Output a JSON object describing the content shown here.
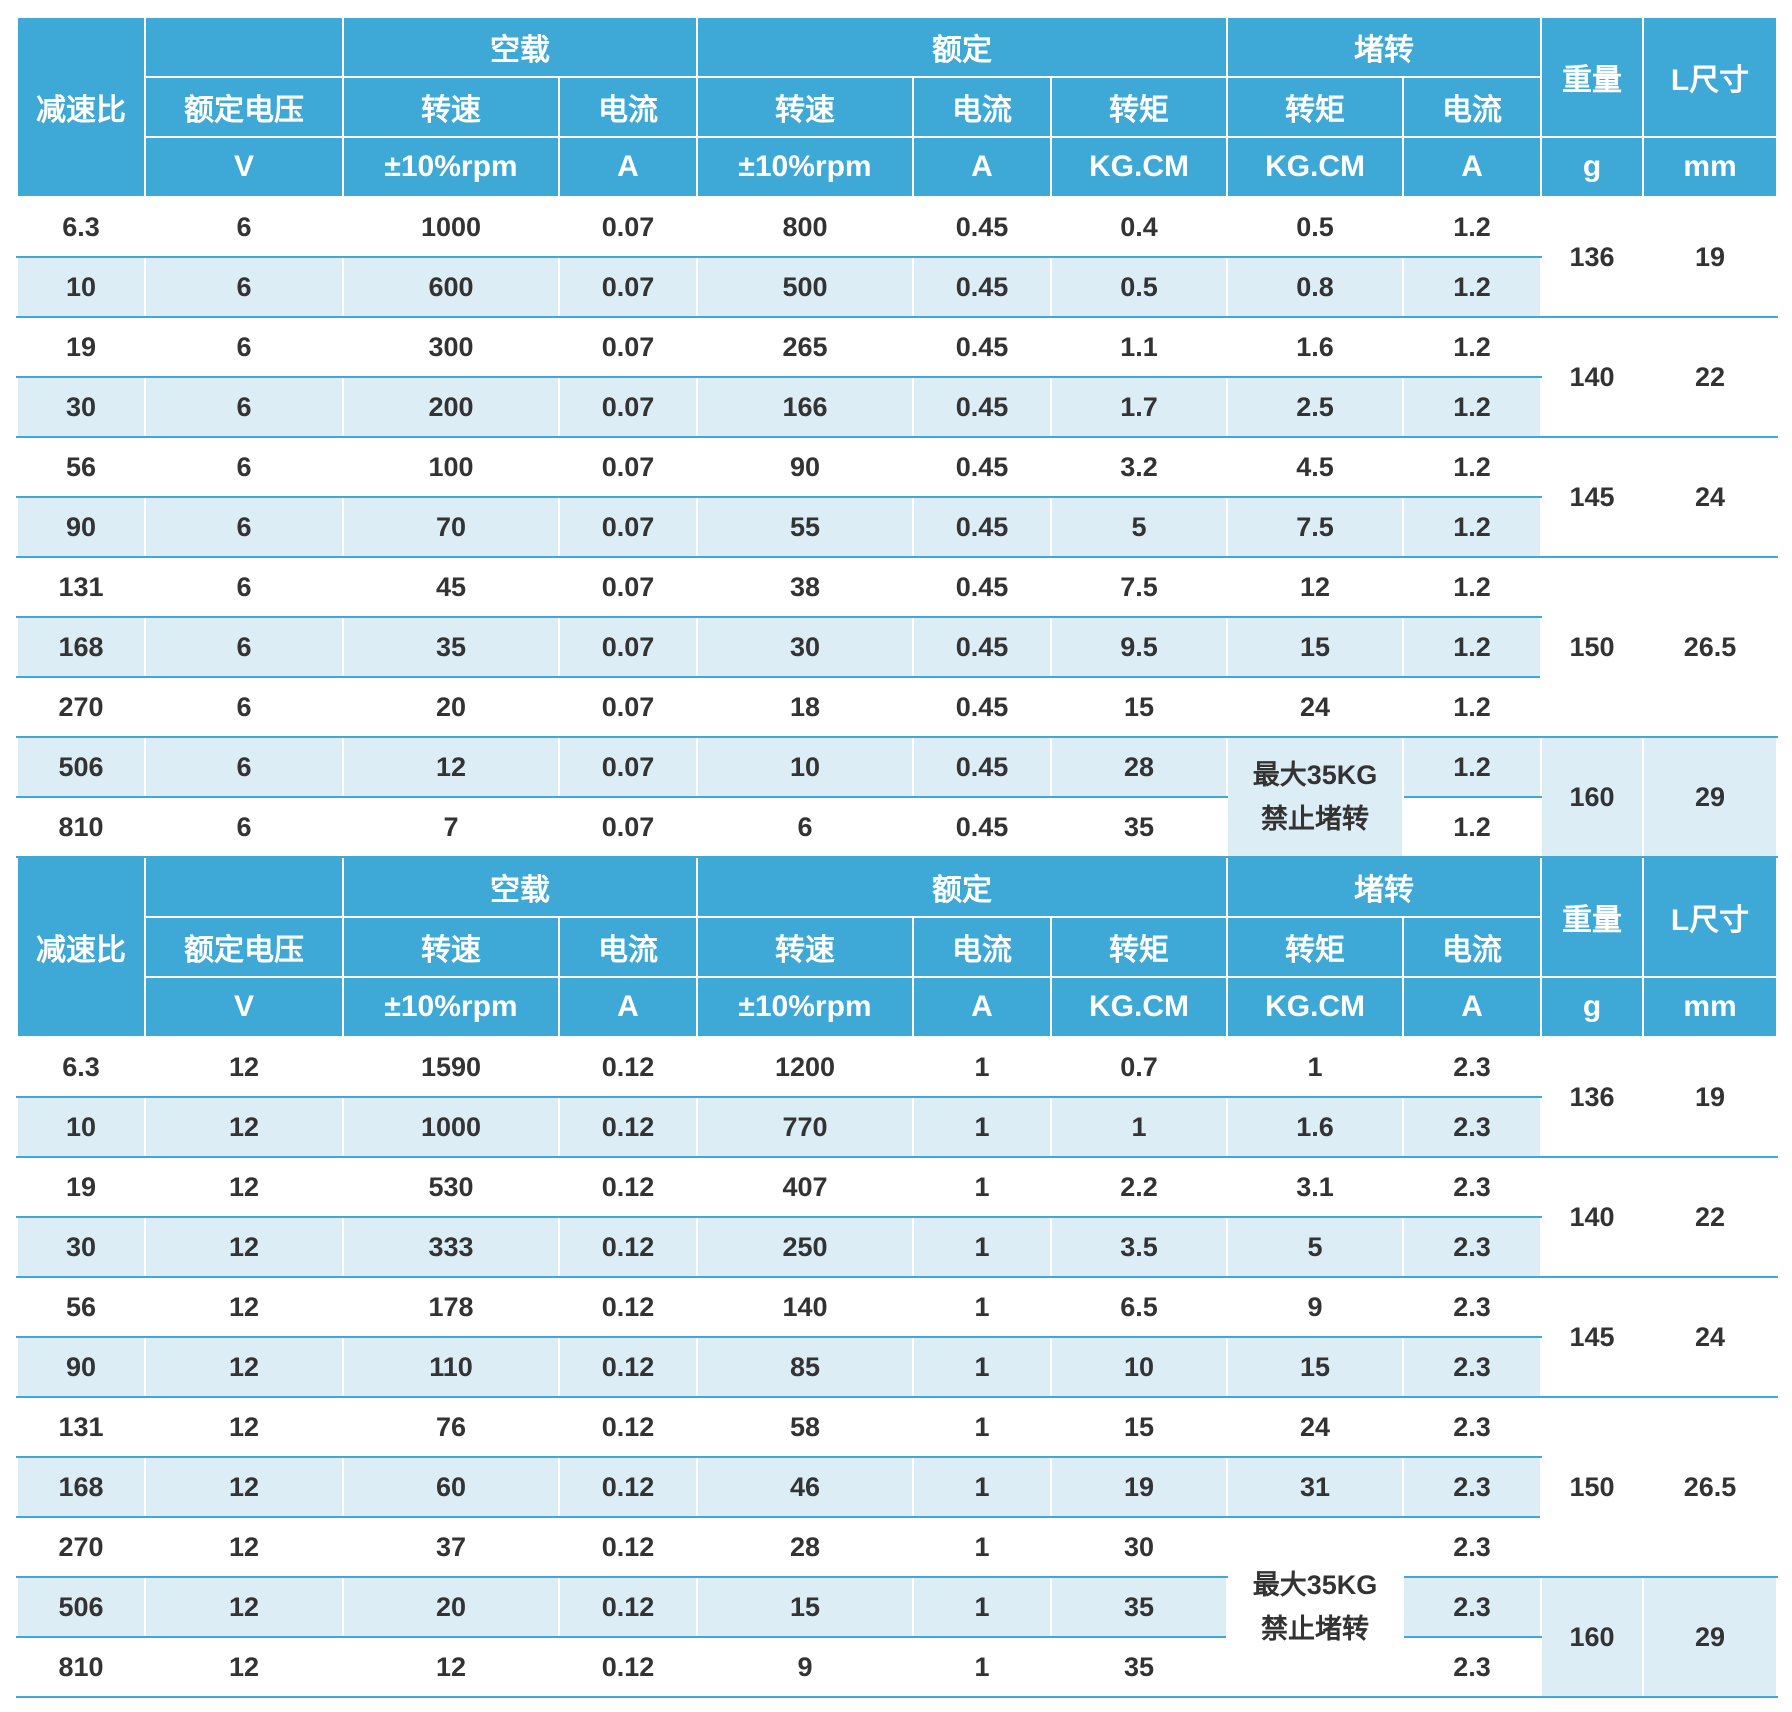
{
  "headers": {
    "ratio": "减速比",
    "no_load": "空载",
    "rated": "额定",
    "stall": "堵转",
    "weight": "重量",
    "size": "L尺寸",
    "rated_voltage": "额定电压",
    "speed": "转速",
    "current": "电流",
    "torque": "转矩",
    "unit_v": "V",
    "unit_rpm": "±10%rpm",
    "unit_a": "A",
    "unit_kgcm": "KG.CM",
    "unit_g": "g",
    "unit_mm": "mm"
  },
  "stall_note": {
    "line1": "最大35KG",
    "line2": "禁止堵转"
  },
  "table_6v": {
    "rows": [
      {
        "ratio": "6.3",
        "voltage": "6",
        "nl_speed": "1000",
        "nl_current": "0.07",
        "r_speed": "800",
        "r_current": "0.45",
        "r_torque": "0.4",
        "s_torque": "0.5",
        "s_current": "1.2"
      },
      {
        "ratio": "10",
        "voltage": "6",
        "nl_speed": "600",
        "nl_current": "0.07",
        "r_speed": "500",
        "r_current": "0.45",
        "r_torque": "0.5",
        "s_torque": "0.8",
        "s_current": "1.2"
      },
      {
        "ratio": "19",
        "voltage": "6",
        "nl_speed": "300",
        "nl_current": "0.07",
        "r_speed": "265",
        "r_current": "0.45",
        "r_torque": "1.1",
        "s_torque": "1.6",
        "s_current": "1.2"
      },
      {
        "ratio": "30",
        "voltage": "6",
        "nl_speed": "200",
        "nl_current": "0.07",
        "r_speed": "166",
        "r_current": "0.45",
        "r_torque": "1.7",
        "s_torque": "2.5",
        "s_current": "1.2"
      },
      {
        "ratio": "56",
        "voltage": "6",
        "nl_speed": "100",
        "nl_current": "0.07",
        "r_speed": "90",
        "r_current": "0.45",
        "r_torque": "3.2",
        "s_torque": "4.5",
        "s_current": "1.2"
      },
      {
        "ratio": "90",
        "voltage": "6",
        "nl_speed": "70",
        "nl_current": "0.07",
        "r_speed": "55",
        "r_current": "0.45",
        "r_torque": "5",
        "s_torque": "7.5",
        "s_current": "1.2"
      },
      {
        "ratio": "131",
        "voltage": "6",
        "nl_speed": "45",
        "nl_current": "0.07",
        "r_speed": "38",
        "r_current": "0.45",
        "r_torque": "7.5",
        "s_torque": "12",
        "s_current": "1.2"
      },
      {
        "ratio": "168",
        "voltage": "6",
        "nl_speed": "35",
        "nl_current": "0.07",
        "r_speed": "30",
        "r_current": "0.45",
        "r_torque": "9.5",
        "s_torque": "15",
        "s_current": "1.2"
      },
      {
        "ratio": "270",
        "voltage": "6",
        "nl_speed": "20",
        "nl_current": "0.07",
        "r_speed": "18",
        "r_current": "0.45",
        "r_torque": "15",
        "s_torque": "24",
        "s_current": "1.2"
      },
      {
        "ratio": "506",
        "voltage": "6",
        "nl_speed": "12",
        "nl_current": "0.07",
        "r_speed": "10",
        "r_current": "0.45",
        "r_torque": "28",
        "s_current": "1.2"
      },
      {
        "ratio": "810",
        "voltage": "6",
        "nl_speed": "7",
        "nl_current": "0.07",
        "r_speed": "6",
        "r_current": "0.45",
        "r_torque": "35",
        "s_current": "1.2"
      }
    ],
    "groups": [
      {
        "weight": "136",
        "size": "19"
      },
      {
        "weight": "140",
        "size": "22"
      },
      {
        "weight": "145",
        "size": "24"
      },
      {
        "weight": "150",
        "size": "26.5"
      },
      {
        "weight": "160",
        "size": "29"
      }
    ]
  },
  "table_12v": {
    "rows": [
      {
        "ratio": "6.3",
        "voltage": "12",
        "nl_speed": "1590",
        "nl_current": "0.12",
        "r_speed": "1200",
        "r_current": "1",
        "r_torque": "0.7",
        "s_torque": "1",
        "s_current": "2.3"
      },
      {
        "ratio": "10",
        "voltage": "12",
        "nl_speed": "1000",
        "nl_current": "0.12",
        "r_speed": "770",
        "r_current": "1",
        "r_torque": "1",
        "s_torque": "1.6",
        "s_current": "2.3"
      },
      {
        "ratio": "19",
        "voltage": "12",
        "nl_speed": "530",
        "nl_current": "0.12",
        "r_speed": "407",
        "r_current": "1",
        "r_torque": "2.2",
        "s_torque": "3.1",
        "s_current": "2.3"
      },
      {
        "ratio": "30",
        "voltage": "12",
        "nl_speed": "333",
        "nl_current": "0.12",
        "r_speed": "250",
        "r_current": "1",
        "r_torque": "3.5",
        "s_torque": "5",
        "s_current": "2.3"
      },
      {
        "ratio": "56",
        "voltage": "12",
        "nl_speed": "178",
        "nl_current": "0.12",
        "r_speed": "140",
        "r_current": "1",
        "r_torque": "6.5",
        "s_torque": "9",
        "s_current": "2.3"
      },
      {
        "ratio": "90",
        "voltage": "12",
        "nl_speed": "110",
        "nl_current": "0.12",
        "r_speed": "85",
        "r_current": "1",
        "r_torque": "10",
        "s_torque": "15",
        "s_current": "2.3"
      },
      {
        "ratio": "131",
        "voltage": "12",
        "nl_speed": "76",
        "nl_current": "0.12",
        "r_speed": "58",
        "r_current": "1",
        "r_torque": "15",
        "s_torque": "24",
        "s_current": "2.3"
      },
      {
        "ratio": "168",
        "voltage": "12",
        "nl_speed": "60",
        "nl_current": "0.12",
        "r_speed": "46",
        "r_current": "1",
        "r_torque": "19",
        "s_torque": "31",
        "s_current": "2.3"
      },
      {
        "ratio": "270",
        "voltage": "12",
        "nl_speed": "37",
        "nl_current": "0.12",
        "r_speed": "28",
        "r_current": "1",
        "r_torque": "30",
        "s_current": "2.3"
      },
      {
        "ratio": "506",
        "voltage": "12",
        "nl_speed": "20",
        "nl_current": "0.12",
        "r_speed": "15",
        "r_current": "1",
        "r_torque": "35",
        "s_current": "2.3"
      },
      {
        "ratio": "810",
        "voltage": "12",
        "nl_speed": "12",
        "nl_current": "0.12",
        "r_speed": "9",
        "r_current": "1",
        "r_torque": "35",
        "s_current": "2.3"
      }
    ],
    "groups": [
      {
        "weight": "136",
        "size": "19"
      },
      {
        "weight": "140",
        "size": "22"
      },
      {
        "weight": "145",
        "size": "24"
      },
      {
        "weight": "150",
        "size": "26.5"
      },
      {
        "weight": "160",
        "size": "29"
      }
    ]
  }
}
